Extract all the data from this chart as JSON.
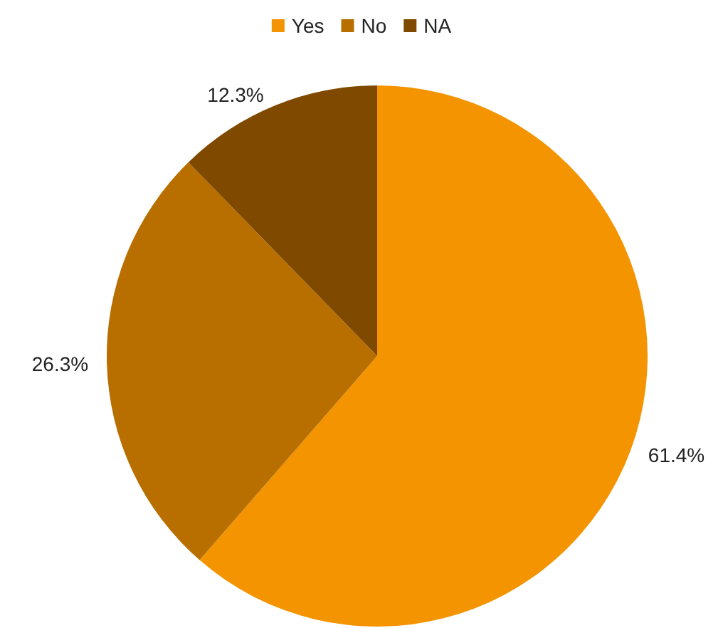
{
  "chart_data": {
    "type": "pie",
    "categories": [
      "Yes",
      "No",
      "NA"
    ],
    "values": [
      61.4,
      26.3,
      12.3
    ],
    "colors": [
      "#f39400",
      "#b86f00",
      "#7f4a00"
    ],
    "value_labels": [
      "61.4%",
      "26.3%",
      "12.3%"
    ],
    "legend": "top"
  }
}
